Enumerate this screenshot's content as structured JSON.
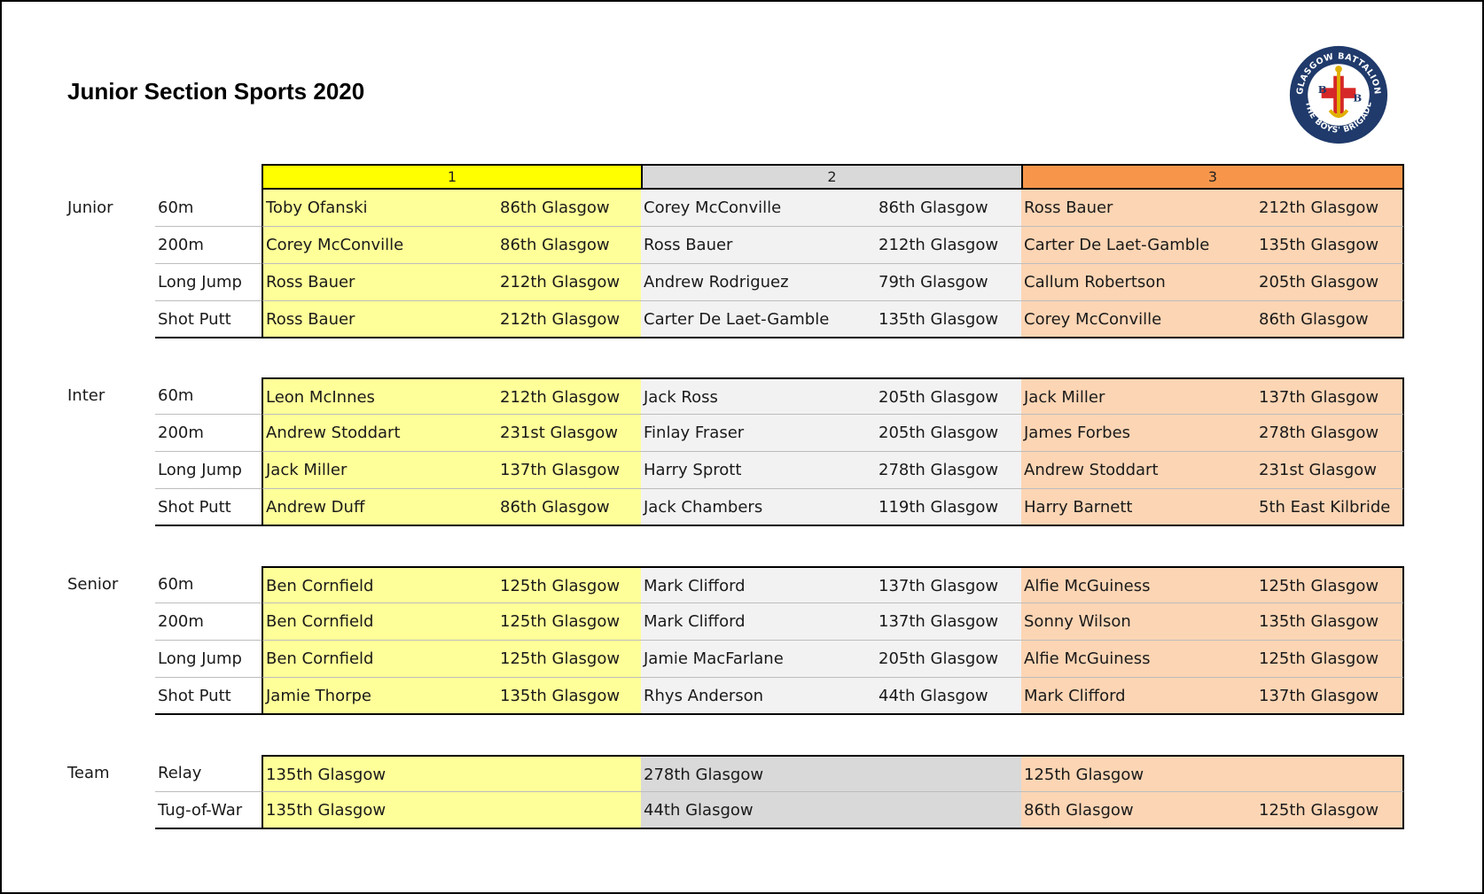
{
  "title": "Junior Section Sports 2020",
  "logo": {
    "ring_top": "GLASGOW BATTALION",
    "ring_bottom": "THE BOYS' BRIGADE",
    "letters": [
      "B",
      "B"
    ]
  },
  "places": [
    "1",
    "2",
    "3"
  ],
  "colors": {
    "first": "#ffff00",
    "second": "#d9d9d9",
    "third": "#f7964a"
  },
  "sections": [
    {
      "label": "Junior",
      "rows": [
        {
          "event": "60m",
          "results": [
            {
              "name": "Toby Ofanski",
              "club": "86th Glasgow"
            },
            {
              "name": "Corey McConville",
              "club": "86th Glasgow"
            },
            {
              "name": "Ross Bauer",
              "club": "212th Glasgow"
            }
          ]
        },
        {
          "event": "200m",
          "results": [
            {
              "name": "Corey McConville",
              "club": "86th Glasgow"
            },
            {
              "name": "Ross Bauer",
              "club": "212th Glasgow"
            },
            {
              "name": "Carter De Laet-Gamble",
              "club": "135th Glasgow"
            }
          ]
        },
        {
          "event": "Long Jump",
          "results": [
            {
              "name": "Ross Bauer",
              "club": "212th Glasgow"
            },
            {
              "name": "Andrew Rodriguez",
              "club": "79th Glasgow"
            },
            {
              "name": "Callum Robertson",
              "club": "205th Glasgow"
            }
          ]
        },
        {
          "event": "Shot Putt",
          "results": [
            {
              "name": "Ross Bauer",
              "club": "212th Glasgow"
            },
            {
              "name": "Carter De Laet-Gamble",
              "club": "135th Glasgow"
            },
            {
              "name": "Corey McConville",
              "club": "86th Glasgow"
            }
          ]
        }
      ]
    },
    {
      "label": "Inter",
      "rows": [
        {
          "event": "60m",
          "results": [
            {
              "name": "Leon McInnes",
              "club": "212th Glasgow"
            },
            {
              "name": "Jack Ross",
              "club": "205th Glasgow"
            },
            {
              "name": "Jack Miller",
              "club": "137th Glasgow"
            }
          ]
        },
        {
          "event": "200m",
          "results": [
            {
              "name": "Andrew Stoddart",
              "club": "231st Glasgow"
            },
            {
              "name": "Finlay Fraser",
              "club": "205th Glasgow"
            },
            {
              "name": "James Forbes",
              "club": "278th Glasgow"
            }
          ]
        },
        {
          "event": "Long Jump",
          "results": [
            {
              "name": "Jack Miller",
              "club": "137th Glasgow"
            },
            {
              "name": "Harry Sprott",
              "club": "278th Glasgow"
            },
            {
              "name": "Andrew Stoddart",
              "club": "231st Glasgow"
            }
          ]
        },
        {
          "event": "Shot Putt",
          "results": [
            {
              "name": "Andrew Duff",
              "club": "86th Glasgow"
            },
            {
              "name": "Jack Chambers",
              "club": "119th Glasgow"
            },
            {
              "name": "Harry Barnett",
              "club": "5th East Kilbride"
            }
          ]
        }
      ]
    },
    {
      "label": "Senior",
      "rows": [
        {
          "event": "60m",
          "results": [
            {
              "name": "Ben Cornfield",
              "club": "125th Glasgow"
            },
            {
              "name": "Mark Clifford",
              "club": "137th Glasgow"
            },
            {
              "name": "Alfie McGuiness",
              "club": "125th Glasgow"
            }
          ]
        },
        {
          "event": "200m",
          "results": [
            {
              "name": "Ben Cornfield",
              "club": "125th Glasgow"
            },
            {
              "name": "Mark Clifford",
              "club": "137th Glasgow"
            },
            {
              "name": "Sonny Wilson",
              "club": "135th Glasgow"
            }
          ]
        },
        {
          "event": "Long Jump",
          "results": [
            {
              "name": "Ben Cornfield",
              "club": "125th Glasgow"
            },
            {
              "name": "Jamie MacFarlane",
              "club": "205th Glasgow"
            },
            {
              "name": "Alfie McGuiness",
              "club": "125th Glasgow"
            }
          ]
        },
        {
          "event": "Shot Putt",
          "results": [
            {
              "name": "Jamie Thorpe",
              "club": "135th Glasgow"
            },
            {
              "name": "Rhys Anderson",
              "club": "44th Glasgow"
            },
            {
              "name": "Mark Clifford",
              "club": "137th Glasgow"
            }
          ]
        }
      ]
    },
    {
      "label": "Team",
      "team": true,
      "rows": [
        {
          "event": "Relay",
          "results": [
            {
              "name": "135th Glasgow",
              "club": ""
            },
            {
              "name": "278th Glasgow",
              "club": ""
            },
            {
              "name": "125th Glasgow",
              "club": ""
            }
          ]
        },
        {
          "event": "Tug-of-War",
          "results": [
            {
              "name": "135th Glasgow",
              "club": ""
            },
            {
              "name": "44th Glasgow",
              "club": ""
            },
            {
              "name": "86th Glasgow",
              "club": "125th Glasgow"
            }
          ]
        }
      ]
    }
  ]
}
